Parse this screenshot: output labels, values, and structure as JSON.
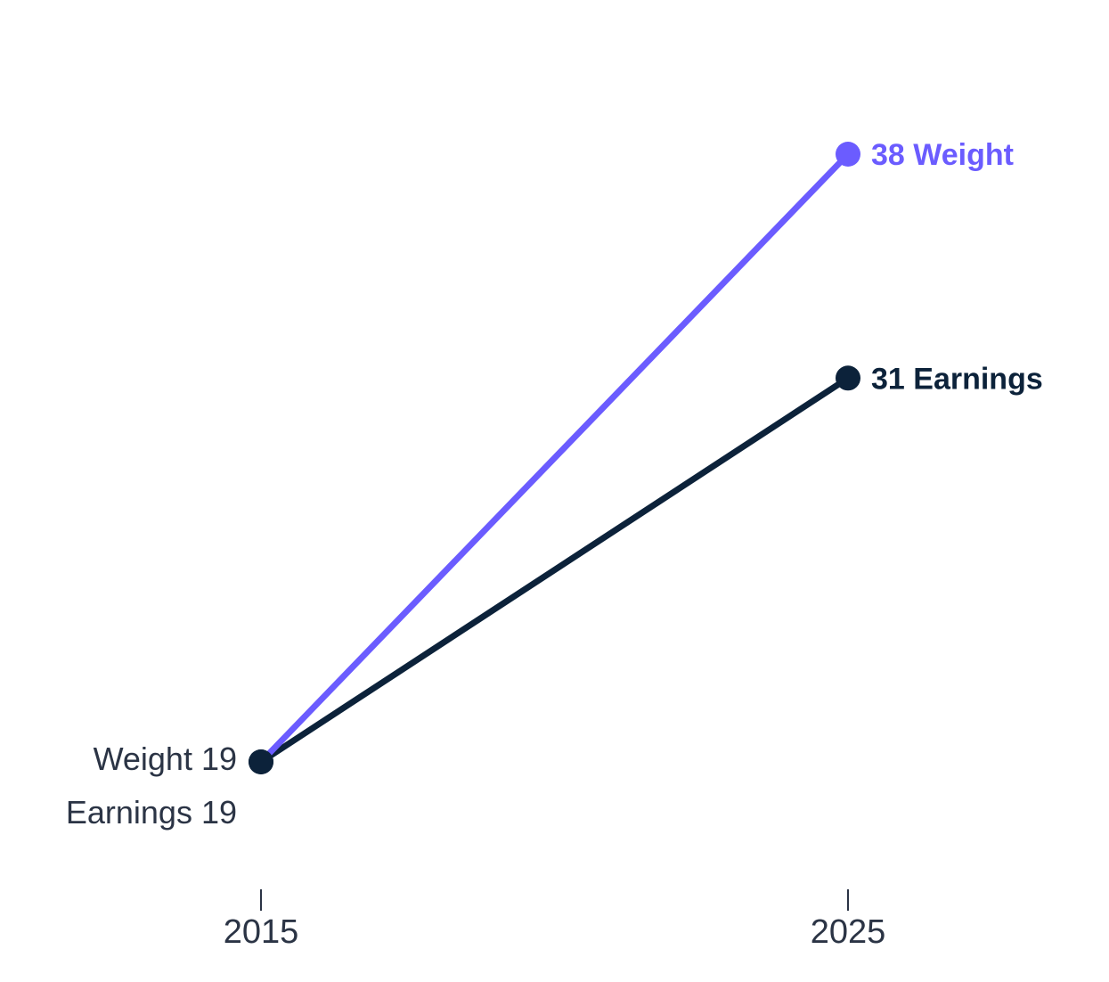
{
  "chart_data": {
    "type": "line",
    "x": [
      "2015",
      "2025"
    ],
    "series": [
      {
        "name": "Weight",
        "values": [
          19,
          38
        ],
        "color": "#6b5cff",
        "start_label": "Weight 19",
        "end_label": "38 Weight"
      },
      {
        "name": "Earnings",
        "values": [
          19,
          31
        ],
        "color": "#0c223a",
        "start_label": "Earnings 19",
        "end_label": "31 Earnings"
      }
    ],
    "title": "",
    "xlabel": "",
    "ylabel": "",
    "grid": false,
    "legend": "none"
  }
}
